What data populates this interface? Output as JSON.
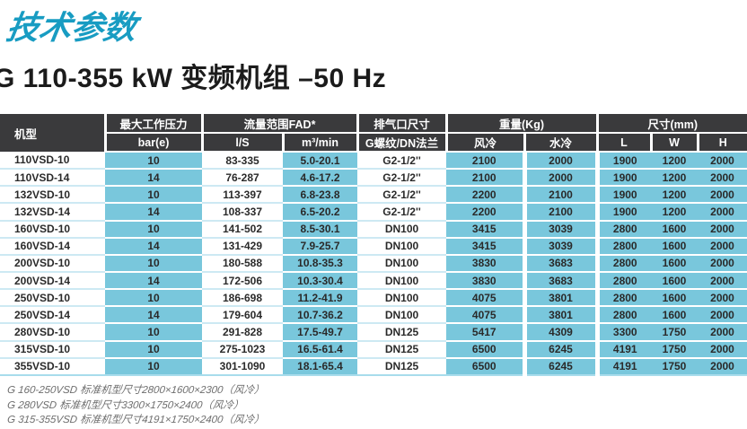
{
  "page": {
    "title": "技术参数",
    "subtitle": "G 110-355 kW 变频机组 –50 Hz"
  },
  "colors": {
    "accent_teal": "#189cc2",
    "header_bg": "#3a3a3c",
    "cell_blue": "#79c7dc",
    "row_separator": "#cde9f3",
    "footnote_gray": "#6e6e6e"
  },
  "table": {
    "headers": {
      "model": "机型",
      "pressure_group": "最大工作压力",
      "pressure_unit": "bar(e)",
      "flow_group": "流量范围FAD*",
      "flow_unit_ls": "l/S",
      "flow_unit_m3": "m³/min",
      "outlet_group": "排气口尺寸",
      "outlet_sub": "G螺纹/DN法兰",
      "weight_group": "重量(Kg)",
      "weight_air": "风冷",
      "weight_water": "水冷",
      "dim_group": "尺寸(mm)",
      "dim_l": "L",
      "dim_w": "W",
      "dim_h": "H"
    },
    "rows": [
      [
        "110VSD-10",
        "10",
        "83-335",
        "5.0-20.1",
        "G2-1/2''",
        "2100",
        "2000",
        "1900",
        "1200",
        "2000"
      ],
      [
        "110VSD-14",
        "14",
        "76-287",
        "4.6-17.2",
        "G2-1/2''",
        "2100",
        "2000",
        "1900",
        "1200",
        "2000"
      ],
      [
        "132VSD-10",
        "10",
        "113-397",
        "6.8-23.8",
        "G2-1/2''",
        "2200",
        "2100",
        "1900",
        "1200",
        "2000"
      ],
      [
        "132VSD-14",
        "14",
        "108-337",
        "6.5-20.2",
        "G2-1/2''",
        "2200",
        "2100",
        "1900",
        "1200",
        "2000"
      ],
      [
        "160VSD-10",
        "10",
        "141-502",
        "8.5-30.1",
        "DN100",
        "3415",
        "3039",
        "2800",
        "1600",
        "2000"
      ],
      [
        "160VSD-14",
        "14",
        "131-429",
        "7.9-25.7",
        "DN100",
        "3415",
        "3039",
        "2800",
        "1600",
        "2000"
      ],
      [
        "200VSD-10",
        "10",
        "180-588",
        "10.8-35.3",
        "DN100",
        "3830",
        "3683",
        "2800",
        "1600",
        "2000"
      ],
      [
        "200VSD-14",
        "14",
        "172-506",
        "10.3-30.4",
        "DN100",
        "3830",
        "3683",
        "2800",
        "1600",
        "2000"
      ],
      [
        "250VSD-10",
        "10",
        "186-698",
        "11.2-41.9",
        "DN100",
        "4075",
        "3801",
        "2800",
        "1600",
        "2000"
      ],
      [
        "250VSD-14",
        "14",
        "179-604",
        "10.7-36.2",
        "DN100",
        "4075",
        "3801",
        "2800",
        "1600",
        "2000"
      ],
      [
        "280VSD-10",
        "10",
        "291-828",
        "17.5-49.7",
        "DN125",
        "5417",
        "4309",
        "3300",
        "1750",
        "2000"
      ],
      [
        "315VSD-10",
        "10",
        "275-1023",
        "16.5-61.4",
        "DN125",
        "6500",
        "6245",
        "4191",
        "1750",
        "2000"
      ],
      [
        "355VSD-10",
        "10",
        "301-1090",
        "18.1-65.4",
        "DN125",
        "6500",
        "6245",
        "4191",
        "1750",
        "2000"
      ]
    ]
  },
  "footnotes": [
    "G 160-250VSD 标准机型尺寸2800×1600×2300（风冷）",
    "G 280VSD 标准机型尺寸3300×1750×2400（风冷）",
    "G 315-355VSD 标准机型尺寸4191×1750×2400（风冷）"
  ]
}
